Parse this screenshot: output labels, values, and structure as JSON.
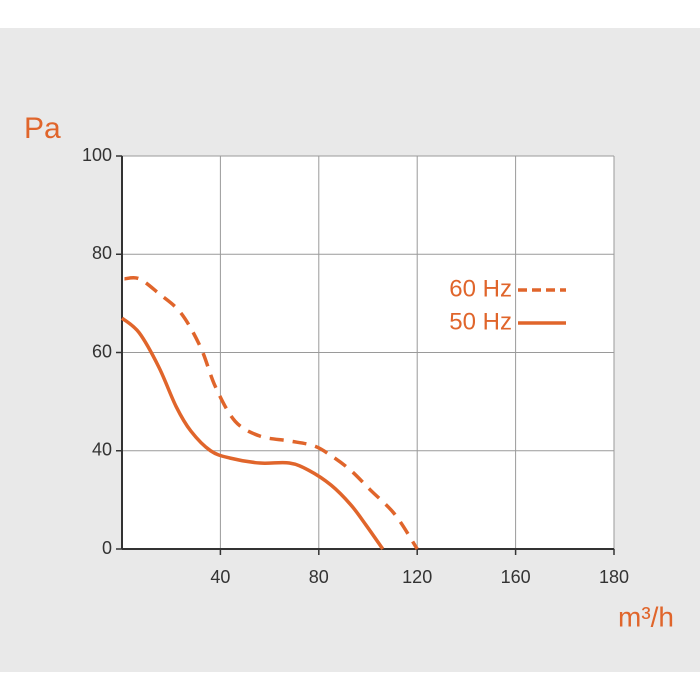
{
  "chart_data": {
    "type": "line",
    "x_label": "m³/h",
    "y_label": "Pa",
    "xlim": [
      0,
      180
    ],
    "xticks": [
      40,
      80,
      120,
      160,
      180
    ],
    "ylim": [
      0,
      100
    ],
    "yticks": [
      0,
      40,
      60,
      80,
      100
    ],
    "grid": true,
    "legend_position": "right",
    "series": [
      {
        "name": "60 Hz",
        "color": "#e0652b",
        "line_style": "dashed",
        "x": [
          1,
          7,
          15,
          24,
          32,
          38,
          46,
          56,
          68,
          78,
          85,
          93,
          101,
          111,
          120
        ],
        "values": [
          75,
          75,
          72,
          68,
          61,
          53,
          46,
          43,
          42,
          41,
          38,
          32,
          24,
          14,
          0
        ]
      },
      {
        "name": "50 Hz",
        "color": "#e0652b",
        "line_style": "solid",
        "x": [
          0,
          7,
          15,
          22,
          28,
          36,
          44,
          56,
          68,
          76,
          85,
          93,
          99,
          106
        ],
        "values": [
          67,
          64,
          57,
          49,
          44,
          40,
          37,
          35,
          35,
          32,
          26,
          18,
          10,
          0
        ]
      }
    ]
  }
}
